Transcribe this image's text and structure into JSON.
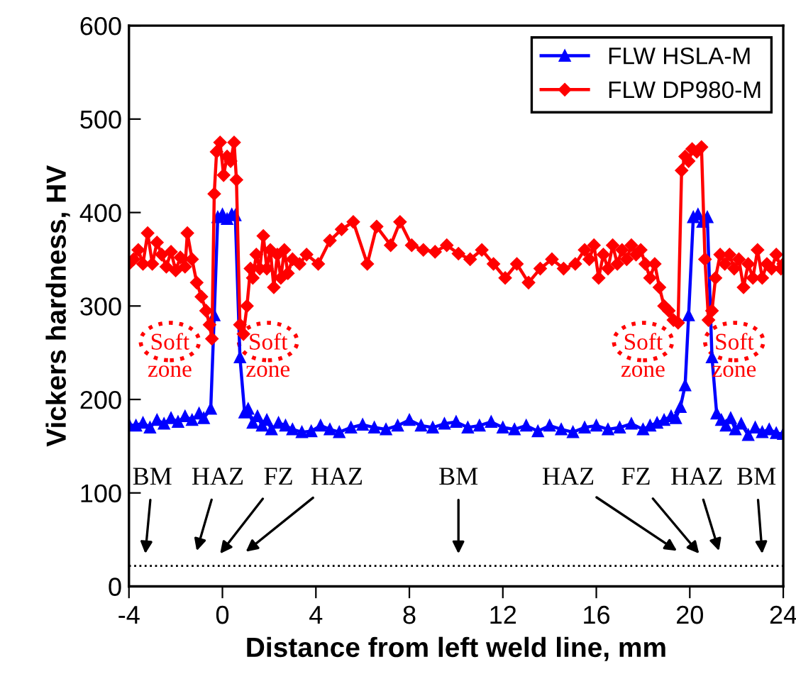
{
  "chart_data": {
    "type": "line",
    "xlabel": "Distance from left weld line, mm",
    "ylabel": "Vickers hardness, HV",
    "xlim": [
      -4,
      24
    ],
    "xticks": [
      -4,
      0,
      4,
      8,
      12,
      16,
      20,
      24
    ],
    "ylim": [
      0,
      600
    ],
    "yticks": [
      0,
      100,
      200,
      300,
      400,
      500,
      600
    ],
    "grid": false,
    "legend": "top right",
    "series": [
      {
        "name": "FLW HSLA-M",
        "color": "#0000ff",
        "marker": "triangle",
        "x": [
          -4,
          -3.7,
          -3.4,
          -3.1,
          -2.8,
          -2.5,
          -2.2,
          -1.9,
          -1.6,
          -1.3,
          -1.0,
          -0.8,
          -0.5,
          -0.35,
          -0.2,
          0,
          0.2,
          0.4,
          0.55,
          0.75,
          0.95,
          1.1,
          1.3,
          1.5,
          1.7,
          1.9,
          2.1,
          2.4,
          2.7,
          3,
          3.4,
          3.8,
          4.2,
          4.6,
          5,
          5.5,
          6,
          6.5,
          7,
          7.5,
          8,
          8.5,
          9,
          9.5,
          10,
          10.5,
          11,
          11.5,
          12,
          12.5,
          13,
          13.5,
          14,
          14.5,
          15,
          15.5,
          16,
          16.5,
          17,
          17.5,
          18,
          18.3,
          18.6,
          18.9,
          19.2,
          19.4,
          19.6,
          19.8,
          19.95,
          20.15,
          20.35,
          20.55,
          20.75,
          20.95,
          21.15,
          21.35,
          21.55,
          21.75,
          21.95,
          22.2,
          22.5,
          22.8,
          23.1,
          23.4,
          23.7,
          24
        ],
        "values": [
          173,
          172,
          175,
          170,
          178,
          174,
          180,
          176,
          182,
          178,
          185,
          180,
          190,
          290,
          395,
          398,
          393,
          398,
          397,
          245,
          186,
          190,
          175,
          182,
          172,
          178,
          168,
          175,
          172,
          168,
          165,
          166,
          172,
          168,
          165,
          170,
          173,
          170,
          168,
          172,
          178,
          172,
          170,
          174,
          176,
          170,
          172,
          176,
          170,
          168,
          172,
          166,
          172,
          168,
          165,
          170,
          172,
          168,
          170,
          174,
          168,
          172,
          175,
          178,
          182,
          180,
          192,
          215,
          290,
          395,
          398,
          390,
          395,
          245,
          185,
          178,
          172,
          180,
          168,
          174,
          162,
          170,
          165,
          168,
          164,
          163
        ]
      },
      {
        "name": "FLW DP980-M",
        "color": "#ff0000",
        "marker": "diamond",
        "x": [
          -4,
          -3.8,
          -3.6,
          -3.4,
          -3.2,
          -3.0,
          -2.8,
          -2.6,
          -2.4,
          -2.2,
          -2.0,
          -1.8,
          -1.6,
          -1.5,
          -1.3,
          -1.1,
          -0.9,
          -0.7,
          -0.55,
          -0.45,
          -0.35,
          -0.25,
          -0.1,
          0.05,
          0.2,
          0.35,
          0.5,
          0.6,
          0.75,
          0.9,
          1.05,
          1.2,
          1.3,
          1.45,
          1.6,
          1.75,
          1.9,
          2.05,
          2.2,
          2.35,
          2.5,
          2.65,
          2.8,
          3,
          3.3,
          3.6,
          4.1,
          4.6,
          5.1,
          5.6,
          6.2,
          6.6,
          7.2,
          7.6,
          8.1,
          8.6,
          9.1,
          9.6,
          10.1,
          10.6,
          11.1,
          11.6,
          12.1,
          12.6,
          13.1,
          13.6,
          14.1,
          14.6,
          15.1,
          15.5,
          15.7,
          15.9,
          16.1,
          16.3,
          16.5,
          16.7,
          16.9,
          17.1,
          17.3,
          17.5,
          17.7,
          17.9,
          18.1,
          18.3,
          18.5,
          18.7,
          18.9,
          19.1,
          19.3,
          19.5,
          19.65,
          19.8,
          19.95,
          20.1,
          20.3,
          20.5,
          20.65,
          20.8,
          20.95,
          21.1,
          21.3,
          21.5,
          21.7,
          21.9,
          22.1,
          22.3,
          22.5,
          22.7,
          22.9,
          23.1,
          23.3,
          23.5,
          23.7,
          23.9,
          24
        ],
        "values": [
          345,
          350,
          360,
          345,
          378,
          345,
          368,
          355,
          342,
          358,
          338,
          352,
          342,
          378,
          350,
          325,
          310,
          295,
          280,
          265,
          420,
          465,
          475,
          440,
          460,
          455,
          475,
          435,
          280,
          270,
          300,
          340,
          330,
          355,
          340,
          375,
          340,
          360,
          320,
          355,
          330,
          360,
          335,
          350,
          345,
          355,
          345,
          370,
          382,
          390,
          345,
          385,
          365,
          390,
          365,
          360,
          358,
          365,
          356,
          350,
          360,
          345,
          330,
          345,
          325,
          340,
          350,
          340,
          345,
          360,
          350,
          365,
          330,
          355,
          340,
          365,
          345,
          360,
          350,
          365,
          355,
          360,
          345,
          330,
          345,
          320,
          300,
          295,
          285,
          282,
          445,
          460,
          455,
          468,
          465,
          470,
          350,
          285,
          295,
          330,
          355,
          345,
          355,
          340,
          350,
          320,
          345,
          330,
          360,
          330,
          345,
          340,
          355,
          340,
          345
        ]
      }
    ],
    "ref_lines": [
      {
        "axis": "y",
        "value": 22,
        "color": "#000000",
        "line_style": "dotted"
      }
    ],
    "annotations": [
      "Soft\nzone",
      "Soft\nzone",
      "Soft\nzone",
      "Soft\nzone",
      "BM",
      "HAZ",
      "FZ",
      "HAZ",
      "BM",
      "HAZ",
      "FZ",
      "HAZ",
      "BM"
    ]
  }
}
